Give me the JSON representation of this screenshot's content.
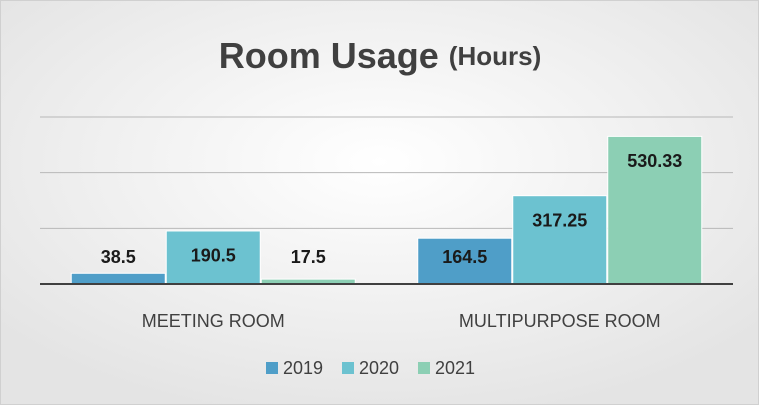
{
  "chart_data": {
    "type": "bar",
    "title": "Room Usage",
    "subtitle": "(Hours)",
    "categories": [
      "MEETING ROOM",
      "MULTIPURPOSE ROOM"
    ],
    "series": [
      {
        "name": "2019",
        "color": "#4f9ec8",
        "values": [
          38.5,
          164.5
        ]
      },
      {
        "name": "2020",
        "color": "#6cc2d0",
        "values": [
          190.5,
          317.25
        ]
      },
      {
        "name": "2021",
        "color": "#8ccfb4",
        "values": [
          17.5,
          530.33
        ]
      }
    ],
    "ylim": [
      0,
      600
    ],
    "yticks": [
      0,
      200,
      400,
      600
    ],
    "grid": true,
    "legend": "bottom"
  }
}
